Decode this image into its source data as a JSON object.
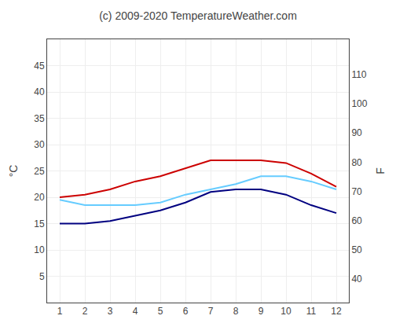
{
  "chart_data": {
    "type": "line",
    "title": "(c) 2009-2020 TemperatureWeather.com",
    "x": [
      1,
      2,
      3,
      4,
      5,
      6,
      7,
      8,
      9,
      10,
      11,
      12
    ],
    "xlim": [
      0.5,
      12.5
    ],
    "xticks": [
      1,
      2,
      3,
      4,
      5,
      6,
      7,
      8,
      9,
      10,
      11,
      12
    ],
    "ylabel": "°C",
    "ylim": [
      0,
      50
    ],
    "yticks": [
      5,
      10,
      15,
      20,
      25,
      30,
      35,
      40,
      45
    ],
    "y2label": "F",
    "y2lim": [
      32,
      122
    ],
    "y2ticks": [
      40,
      50,
      60,
      70,
      80,
      90,
      100,
      110
    ],
    "grid": true,
    "series": [
      {
        "color": "#cc0000",
        "values": [
          20.0,
          20.5,
          21.5,
          23.0,
          24.0,
          25.5,
          27.0,
          27.0,
          27.0,
          26.5,
          24.5,
          22.0
        ]
      },
      {
        "color": "#000080",
        "values": [
          15.0,
          15.0,
          15.5,
          16.5,
          17.5,
          19.0,
          21.0,
          21.5,
          21.5,
          20.5,
          18.5,
          17.0
        ]
      },
      {
        "color": "#66ccff",
        "values": [
          19.5,
          18.5,
          18.5,
          18.5,
          19.0,
          20.5,
          21.5,
          22.5,
          24.0,
          24.0,
          23.0,
          21.5
        ]
      }
    ]
  }
}
